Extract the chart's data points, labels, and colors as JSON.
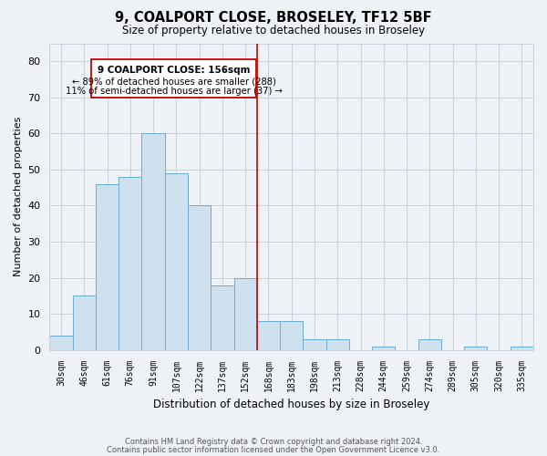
{
  "title": "9, COALPORT CLOSE, BROSELEY, TF12 5BF",
  "subtitle": "Size of property relative to detached houses in Broseley",
  "xlabel": "Distribution of detached houses by size in Broseley",
  "ylabel": "Number of detached properties",
  "bar_labels": [
    "30sqm",
    "46sqm",
    "61sqm",
    "76sqm",
    "91sqm",
    "107sqm",
    "122sqm",
    "137sqm",
    "152sqm",
    "168sqm",
    "183sqm",
    "198sqm",
    "213sqm",
    "228sqm",
    "244sqm",
    "259sqm",
    "274sqm",
    "289sqm",
    "305sqm",
    "320sqm",
    "335sqm"
  ],
  "bar_values": [
    4,
    15,
    46,
    48,
    60,
    49,
    40,
    18,
    20,
    8,
    8,
    3,
    3,
    0,
    1,
    0,
    3,
    0,
    1,
    0,
    1
  ],
  "bar_color": "#cfe0ef",
  "bar_edgecolor": "#6aadd5",
  "vline_x": 8.5,
  "vline_color": "#cc0000",
  "ylim": [
    0,
    85
  ],
  "yticks": [
    0,
    10,
    20,
    30,
    40,
    50,
    60,
    70,
    80
  ],
  "annotation_title": "9 COALPORT CLOSE: 156sqm",
  "annotation_line1": "← 89% of detached houses are smaller (288)",
  "annotation_line2": "11% of semi-detached houses are larger (37) →",
  "footer1": "Contains HM Land Registry data © Crown copyright and database right 2024.",
  "footer2": "Contains public sector information licensed under the Open Government Licence v3.0.",
  "background_color": "#eef2f7",
  "plot_background": "#eef2f7",
  "grid_color": "#c8d0dc"
}
